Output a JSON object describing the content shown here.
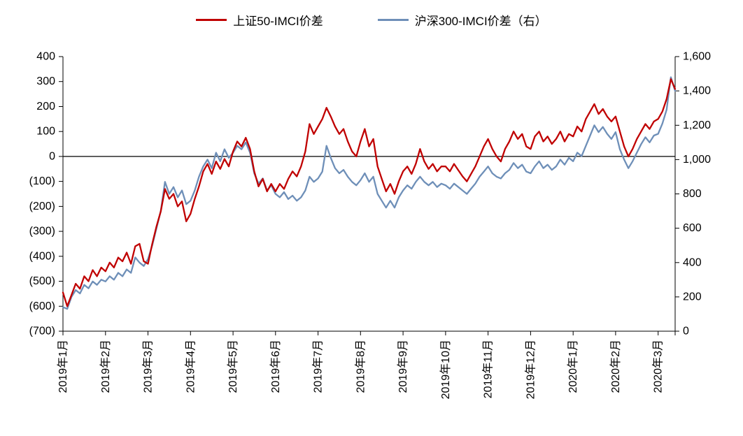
{
  "chart_data": {
    "type": "line",
    "title": "",
    "grid": false,
    "legend_position": "top",
    "left_axis": {
      "min": -700,
      "max": 400,
      "step": 100,
      "tick_labels": [
        "400",
        "300",
        "200",
        "100",
        "0",
        "(100)",
        "(200)",
        "(300)",
        "(400)",
        "(500)",
        "(600)",
        "(700)"
      ]
    },
    "right_axis": {
      "min": 0,
      "max": 1600,
      "step": 200,
      "tick_labels": [
        "1,600",
        "1,400",
        "1,200",
        "1,000",
        "800",
        "600",
        "400",
        "200",
        "0"
      ]
    },
    "x_axis": {
      "labels": [
        "2019年1月",
        "2019年2月",
        "2019年3月",
        "2019年4月",
        "2019年5月",
        "2019年6月",
        "2019年7月",
        "2019年8月",
        "2019年9月",
        "2019年10月",
        "2019年11月",
        "2019年12月",
        "2020年1月",
        "2020年2月",
        "2020年3月"
      ],
      "points_per_month": 10
    },
    "series": [
      {
        "name": "上证50-IMCI价差",
        "axis": "left",
        "color": "#C00000",
        "values": [
          -545,
          -600,
          -555,
          -510,
          -530,
          -480,
          -500,
          -455,
          -480,
          -445,
          -460,
          -425,
          -445,
          -405,
          -420,
          -385,
          -430,
          -360,
          -350,
          -420,
          -430,
          -350,
          -280,
          -220,
          -130,
          -170,
          -150,
          -200,
          -180,
          -260,
          -230,
          -170,
          -120,
          -60,
          -30,
          -70,
          -20,
          -50,
          -10,
          -40,
          20,
          60,
          40,
          75,
          30,
          -60,
          -120,
          -90,
          -140,
          -110,
          -140,
          -110,
          -130,
          -90,
          -60,
          -80,
          -40,
          20,
          130,
          90,
          120,
          150,
          195,
          160,
          120,
          90,
          110,
          60,
          20,
          0,
          60,
          110,
          40,
          70,
          -40,
          -90,
          -140,
          -110,
          -150,
          -100,
          -60,
          -40,
          -70,
          -30,
          30,
          -20,
          -50,
          -30,
          -60,
          -40,
          -40,
          -60,
          -30,
          -55,
          -80,
          -100,
          -70,
          -40,
          0,
          40,
          70,
          30,
          0,
          -20,
          30,
          60,
          100,
          70,
          90,
          40,
          30,
          80,
          100,
          60,
          80,
          50,
          70,
          100,
          60,
          90,
          80,
          120,
          100,
          150,
          180,
          210,
          170,
          190,
          160,
          140,
          160,
          100,
          40,
          0,
          30,
          70,
          100,
          130,
          110,
          140,
          150,
          180,
          230,
          310,
          270
        ]
      },
      {
        "name": "沪深300-IMCI价差（右）",
        "axis": "right",
        "color": "#6E8FB8",
        "values": [
          140,
          130,
          200,
          240,
          220,
          270,
          250,
          290,
          270,
          300,
          290,
          320,
          300,
          340,
          320,
          360,
          340,
          430,
          400,
          380,
          420,
          500,
          600,
          700,
          870,
          800,
          840,
          780,
          820,
          740,
          760,
          820,
          900,
          960,
          1000,
          950,
          1040,
          990,
          1060,
          1010,
          1040,
          1080,
          1060,
          1100,
          1040,
          920,
          860,
          890,
          820,
          850,
          800,
          780,
          810,
          770,
          790,
          760,
          780,
          820,
          900,
          870,
          890,
          930,
          1080,
          1010,
          950,
          920,
          940,
          900,
          870,
          850,
          880,
          920,
          870,
          900,
          800,
          760,
          720,
          760,
          720,
          780,
          820,
          850,
          830,
          870,
          900,
          870,
          850,
          870,
          840,
          860,
          850,
          830,
          860,
          840,
          820,
          800,
          830,
          860,
          900,
          930,
          960,
          920,
          900,
          890,
          920,
          940,
          980,
          950,
          970,
          930,
          920,
          960,
          990,
          950,
          970,
          940,
          960,
          1000,
          970,
          1010,
          990,
          1040,
          1020,
          1080,
          1140,
          1200,
          1160,
          1190,
          1150,
          1120,
          1160,
          1060,
          1000,
          950,
          990,
          1040,
          1090,
          1130,
          1100,
          1140,
          1150,
          1210,
          1290,
          1480,
          1400
        ]
      }
    ]
  }
}
